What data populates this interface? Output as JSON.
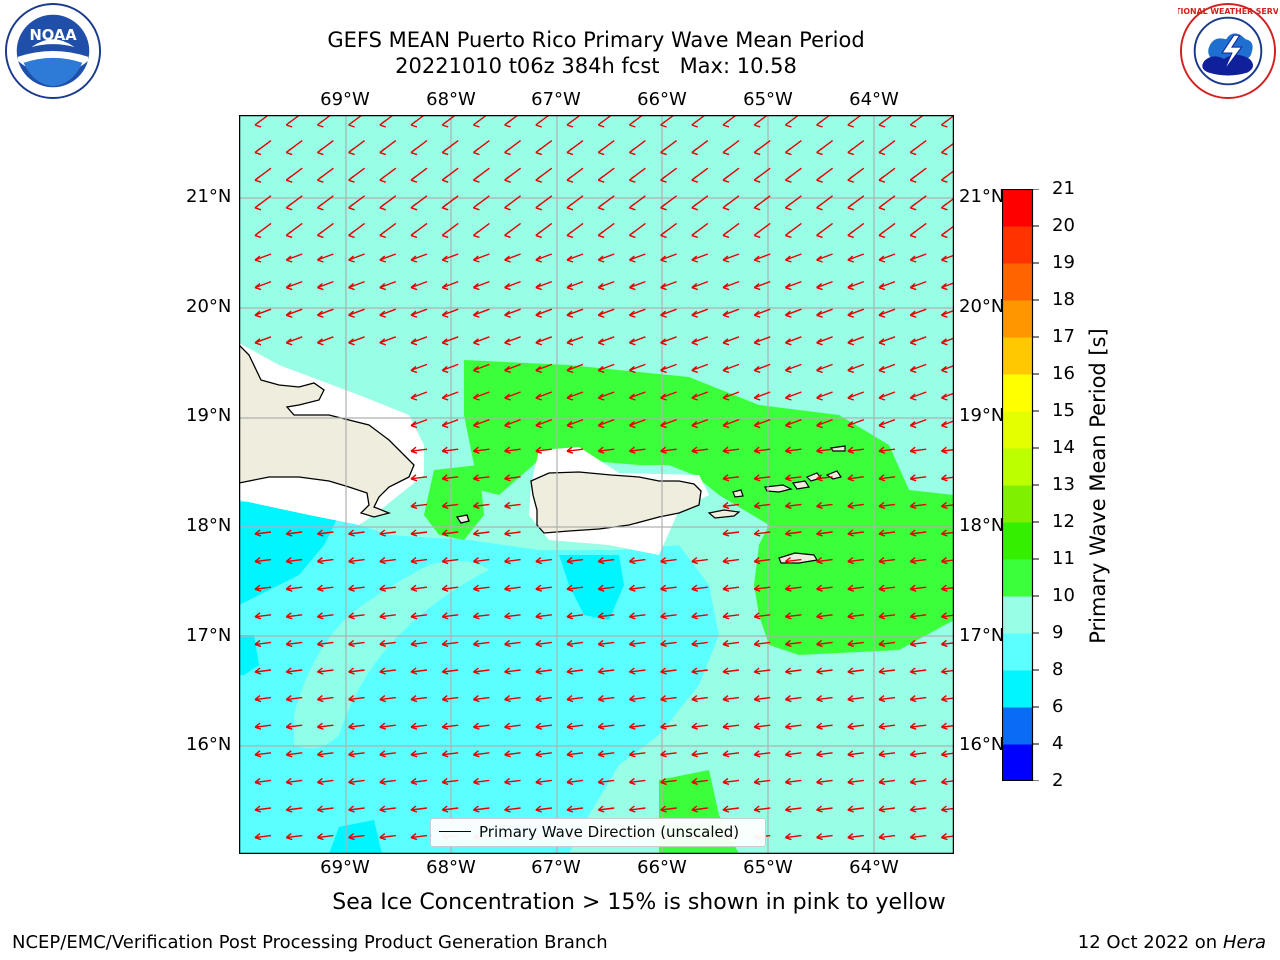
{
  "title": {
    "line1": "GEFS MEAN Puerto Rico Primary Wave Mean Period",
    "line2": "20221010 t06z 384h fcst   Max: 10.58"
  },
  "logos": {
    "left": "NOAA",
    "right": "NATIONAL WEATHER SERVICE"
  },
  "map": {
    "longitude_labels": [
      "69°W",
      "68°W",
      "67°W",
      "66°W",
      "65°W",
      "64°W"
    ],
    "latitude_labels": [
      "21°N",
      "20°N",
      "19°N",
      "18°N",
      "17°N",
      "16°N"
    ],
    "legend_label": "Primary Wave Direction (unscaled)",
    "projection": "PlateCarree",
    "extent": {
      "lon": [
        -70.0,
        -63.25
      ],
      "lat": [
        15.0,
        21.75
      ]
    },
    "gridlines": true
  },
  "colorbar": {
    "label": "Primary Wave Mean Period [s]",
    "ticks": [
      "2",
      "4",
      "6",
      "8",
      "9",
      "10",
      "11",
      "12",
      "13",
      "14",
      "15",
      "16",
      "17",
      "18",
      "19",
      "20",
      "21"
    ],
    "colors": [
      "#0000ff",
      "#0a6cf5",
      "#00f5ff",
      "#5cffff",
      "#98ffe6",
      "#3cff3c",
      "#34f000",
      "#7ef000",
      "#bcff00",
      "#e4ff00",
      "#ffff00",
      "#ffc800",
      "#ff9600",
      "#ff6400",
      "#ff3200",
      "#ff0000"
    ]
  },
  "sea_ice_note": "Sea Ice Concentration > 15% is shown in pink to yellow",
  "footer": {
    "left": "NCEP/EMC/Verification Post Processing Product Generation Branch",
    "right_prefix": "12 Oct 2022 on ",
    "right_machine": "Hera"
  },
  "field_colors": {
    "period_7_8": "#00f5ff",
    "period_8_9": "#5cffff",
    "period_9_10": "#98ffe6",
    "period_10_11": "#3cff3c",
    "land": "#efedde",
    "arrow": "#e60000"
  }
}
